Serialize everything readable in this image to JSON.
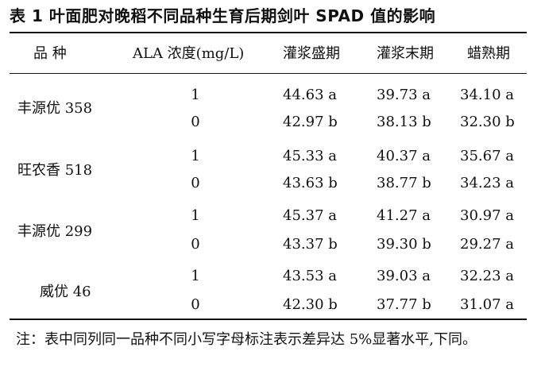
{
  "title": "表 1  叶面肥对晚稻不同品种生育后期剑叶 SPAD 值的影响",
  "headers": [
    "品  种",
    "ALA 浓度(mg/L)",
    "灌浆盛期",
    "灌浆末期",
    "蜡熟期"
  ],
  "groups": [
    {
      "variety": "丰源优 358",
      "rows": [
        {
          "ala": "1",
          "v1": "44.63 a",
          "v2": "39.73 a",
          "v3": "34.10 a"
        },
        {
          "ala": "0",
          "v1": "42.97 b",
          "v2": "38.13 b",
          "v3": "32.30 b"
        }
      ]
    },
    {
      "variety": "旺农香 518",
      "rows": [
        {
          "ala": "1",
          "v1": "45.33 a",
          "v2": "40.37 a",
          "v3": "35.67 a"
        },
        {
          "ala": "0",
          "v1": "43.63 b",
          "v2": "38.77 b",
          "v3": "34.23 a"
        }
      ]
    },
    {
      "variety": "丰源优 299",
      "rows": [
        {
          "ala": "1",
          "v1": "45.37 a",
          "v2": "41.27 a",
          "v3": "30.97 a"
        },
        {
          "ala": "0",
          "v1": "43.37 b",
          "v2": "39.30 b",
          "v3": "29.27 a"
        }
      ]
    },
    {
      "variety": "威优 46",
      "rows": [
        {
          "ala": "1",
          "v1": "43.53 a",
          "v2": "39.03 a",
          "v3": "32.23 a"
        },
        {
          "ala": "0",
          "v1": "42.30 b",
          "v2": "37.77 b",
          "v3": "31.07 a"
        }
      ]
    }
  ],
  "note": "注：表中同列同一品种不同小写字母标注表示差异达 5%显著水平,下同。"
}
